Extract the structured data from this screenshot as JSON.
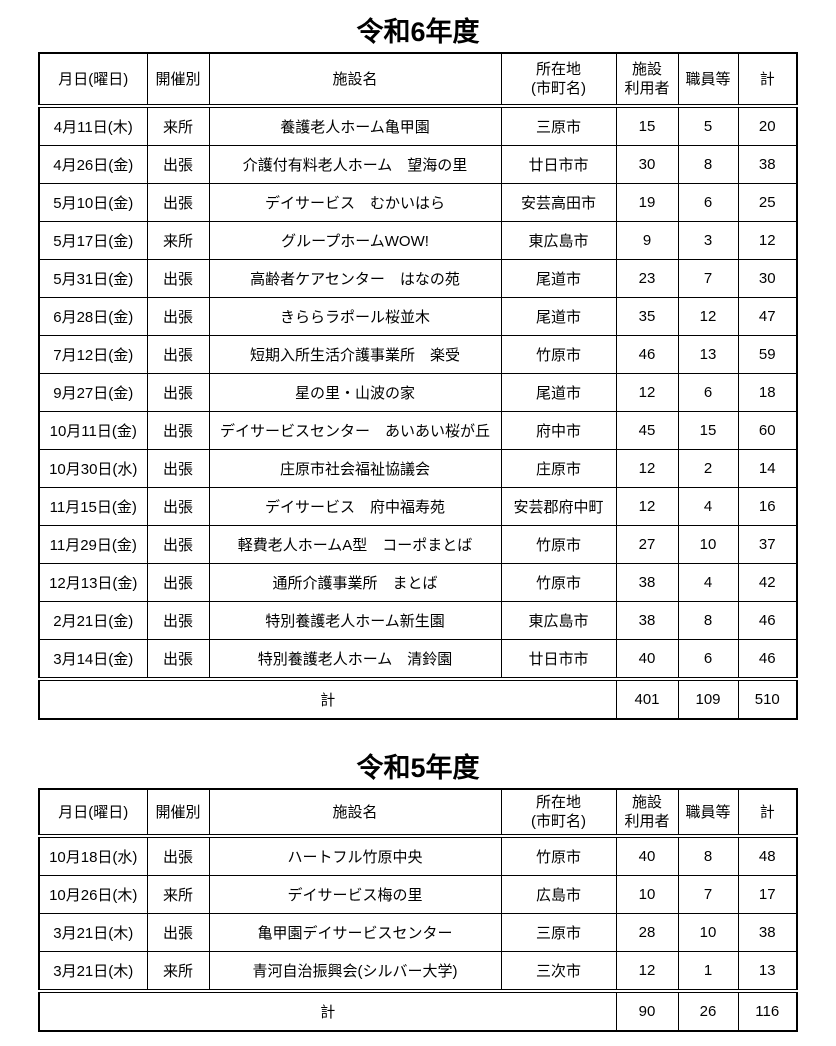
{
  "page": {
    "background_color": "#ffffff",
    "text_color": "#000000",
    "border_color": "#000000"
  },
  "tables": [
    {
      "title": "令和6年度",
      "headers": [
        "月日(曜日)",
        "開催別",
        "施設名",
        "所在地\n(市町名)",
        "施設\n利用者",
        "職員等",
        "計"
      ],
      "rows": [
        [
          "4月11日(木)",
          "来所",
          "養護老人ホーム亀甲園",
          "三原市",
          15,
          5,
          20
        ],
        [
          "4月26日(金)",
          "出張",
          "介護付有料老人ホーム　望海の里",
          "廿日市市",
          30,
          8,
          38
        ],
        [
          "5月10日(金)",
          "出張",
          "デイサービス　むかいはら",
          "安芸高田市",
          19,
          6,
          25
        ],
        [
          "5月17日(金)",
          "来所",
          "グループホームWOW!",
          "東広島市",
          9,
          3,
          12
        ],
        [
          "5月31日(金)",
          "出張",
          "高齢者ケアセンター　はなの苑",
          "尾道市",
          23,
          7,
          30
        ],
        [
          "6月28日(金)",
          "出張",
          "きららラポール桜並木",
          "尾道市",
          35,
          12,
          47
        ],
        [
          "7月12日(金)",
          "出張",
          "短期入所生活介護事業所　楽受",
          "竹原市",
          46,
          13,
          59
        ],
        [
          "9月27日(金)",
          "出張",
          "星の里・山波の家",
          "尾道市",
          12,
          6,
          18
        ],
        [
          "10月11日(金)",
          "出張",
          "デイサービスセンター　あいあい桜が丘",
          "府中市",
          45,
          15,
          60
        ],
        [
          "10月30日(水)",
          "出張",
          "庄原市社会福祉協議会",
          "庄原市",
          12,
          2,
          14
        ],
        [
          "11月15日(金)",
          "出張",
          "デイサービス　府中福寿苑",
          "安芸郡府中町",
          12,
          4,
          16
        ],
        [
          "11月29日(金)",
          "出張",
          "軽費老人ホームA型　コーポまとば",
          "竹原市",
          27,
          10,
          37
        ],
        [
          "12月13日(金)",
          "出張",
          "通所介護事業所　まとば",
          "竹原市",
          38,
          4,
          42
        ],
        [
          "2月21日(金)",
          "出張",
          "特別養護老人ホーム新生園",
          "東広島市",
          38,
          8,
          46
        ],
        [
          "3月14日(金)",
          "出張",
          "特別養護老人ホーム　清鈴園",
          "廿日市市",
          40,
          6,
          46
        ]
      ],
      "total": {
        "label": "計",
        "facility_users": 401,
        "staff": 109,
        "sum": 510
      }
    },
    {
      "title": "令和5年度",
      "headers": [
        "月日(曜日)",
        "開催別",
        "施設名",
        "所在地\n(市町名)",
        "施設\n利用者",
        "職員等",
        "計"
      ],
      "rows": [
        [
          "10月18日(水)",
          "出張",
          "ハートフル竹原中央",
          "竹原市",
          40,
          8,
          48
        ],
        [
          "10月26日(木)",
          "来所",
          "デイサービス梅の里",
          "広島市",
          10,
          7,
          17
        ],
        [
          "3月21日(木)",
          "出張",
          "亀甲園デイサービスセンター",
          "三原市",
          28,
          10,
          38
        ],
        [
          "3月21日(木)",
          "来所",
          "青河自治振興会(シルバー大学)",
          "三次市",
          12,
          1,
          13
        ]
      ],
      "total": {
        "label": "計",
        "facility_users": 90,
        "staff": 26,
        "sum": 116
      }
    }
  ]
}
